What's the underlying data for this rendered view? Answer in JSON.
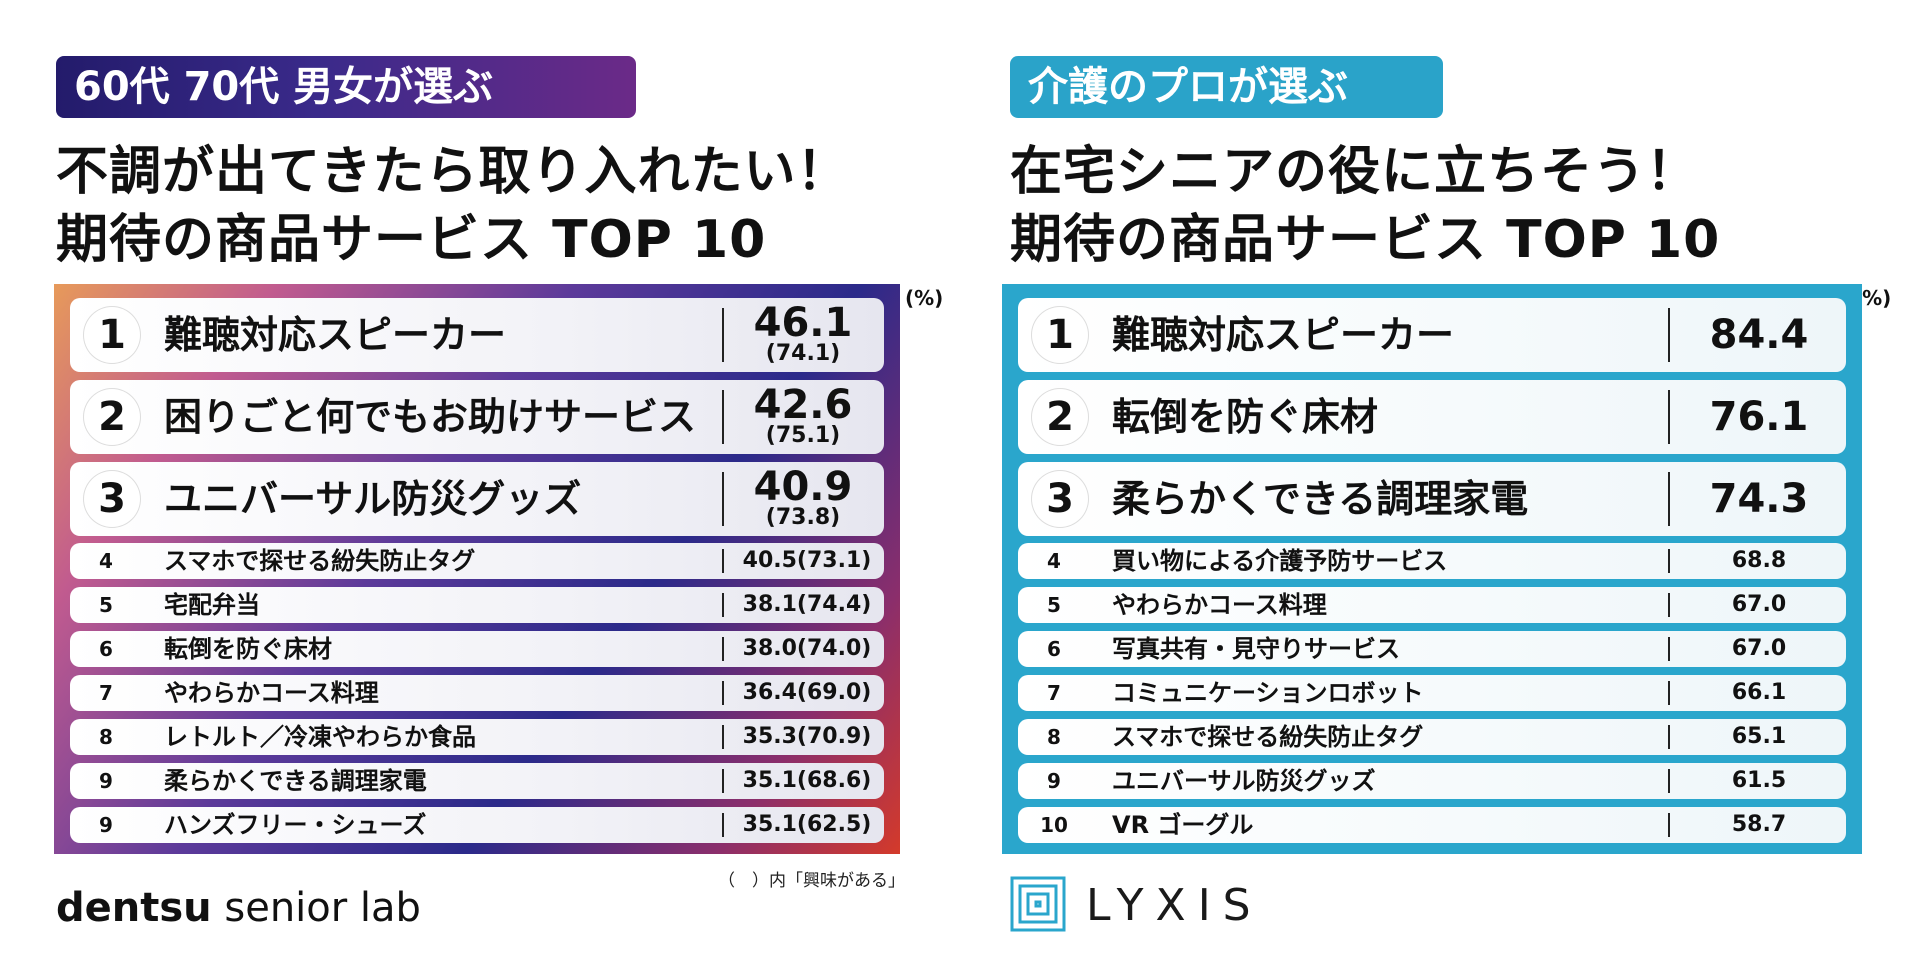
{
  "left": {
    "tag": "60代 70代 男女が選ぶ",
    "headline_line1": "不調が出てきたら取り入れたい！",
    "headline_line2": "期待の商品サービス TOP 10",
    "unit": "(%)",
    "rows": [
      {
        "rank": "1",
        "name": "難聴対応スピーカー",
        "value": "46.1",
        "sub": "(74.1)"
      },
      {
        "rank": "2",
        "name": "困りごと何でもお助けサービス",
        "value": "42.6",
        "sub": "(75.1)"
      },
      {
        "rank": "3",
        "name": "ユニバーサル防災グッズ",
        "value": "40.9",
        "sub": "(73.8)"
      },
      {
        "rank": "4",
        "name": "スマホで探せる紛失防止タグ",
        "value": "40.5(73.1)"
      },
      {
        "rank": "5",
        "name": "宅配弁当",
        "value": "38.1(74.4)"
      },
      {
        "rank": "6",
        "name": "転倒を防ぐ床材",
        "value": "38.0(74.0)"
      },
      {
        "rank": "7",
        "name": "やわらかコース料理",
        "value": "36.4(69.0)"
      },
      {
        "rank": "8",
        "name": "レトルト／冷凍やわらか食品",
        "value": "35.3(70.9)"
      },
      {
        "rank": "9",
        "name": "柔らかくできる調理家電",
        "value": "35.1(68.6)"
      },
      {
        "rank": "9",
        "name": "ハンズフリー・シューズ",
        "value": "35.1(62.5)"
      }
    ],
    "note": "（　）内「興味がある」",
    "logo_bold": "dentsu",
    "logo_rest": " senior lab"
  },
  "right": {
    "tag": "介護のプロが選ぶ",
    "headline_line1": "在宅シニアの役に立ちそう！",
    "headline_line2": "期待の商品サービス TOP 10",
    "unit": "(%)",
    "rows": [
      {
        "rank": "1",
        "name": "難聴対応スピーカー",
        "value": "84.4"
      },
      {
        "rank": "2",
        "name": "転倒を防ぐ床材",
        "value": "76.1"
      },
      {
        "rank": "3",
        "name": "柔らかくできる調理家電",
        "value": "74.3"
      },
      {
        "rank": "4",
        "name": "買い物による介護予防サービス",
        "value": "68.8"
      },
      {
        "rank": "5",
        "name": "やわらかコース料理",
        "value": "67.0"
      },
      {
        "rank": "6",
        "name": "写真共有・見守りサービス",
        "value": "67.0"
      },
      {
        "rank": "7",
        "name": "コミュニケーションロボット",
        "value": "66.1"
      },
      {
        "rank": "8",
        "name": "スマホで探せる紛失防止タグ",
        "value": "65.1"
      },
      {
        "rank": "9",
        "name": "ユニバーサル防災グッズ",
        "value": "61.5"
      },
      {
        "rank": "10",
        "name": "VR ゴーグル",
        "value": "58.7"
      }
    ],
    "logo_word": "LYXIS"
  }
}
